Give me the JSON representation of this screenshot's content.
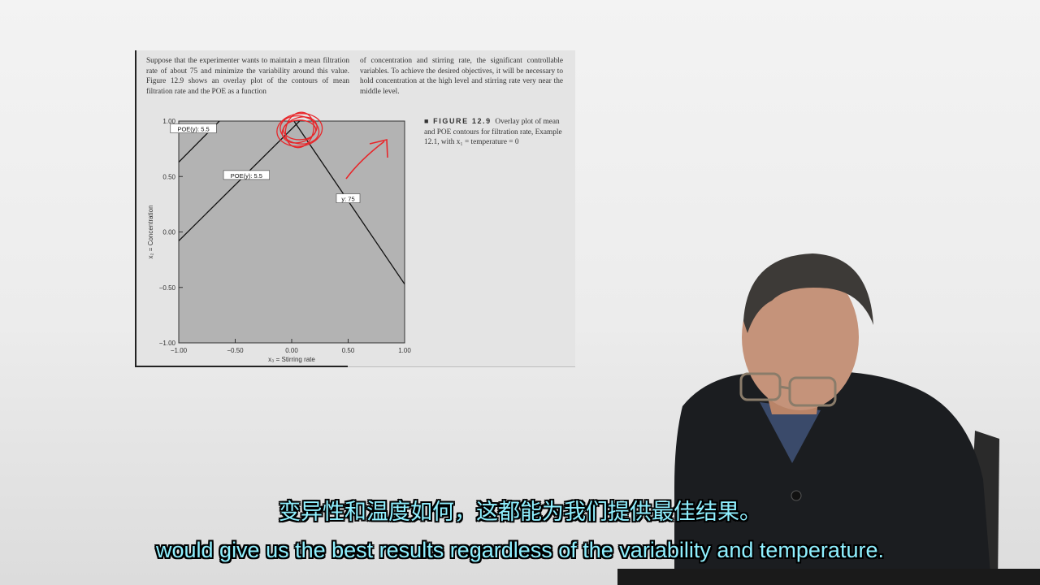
{
  "slide": {
    "paragraph_left": "Suppose that the experimenter wants to maintain a mean filtration rate of about 75 and minimize the variability around this value. Figure 12.9 shows an overlay plot of the contours of mean filtration rate and the POE as a function",
    "paragraph_right": "of concentration and stirring rate, the significant controllable variables. To achieve the desired objectives, it will be necessary to hold concentration at the high level and stirring rate very near the middle level.",
    "figure_label": "FIGURE 12.9",
    "figure_caption": "Overlay plot of mean and POE contours for filtration rate, Example 12.1, with x₁ = temperature = 0"
  },
  "chart_data": {
    "type": "line",
    "xlabel": "x₃ = Stirring rate",
    "ylabel": "x₂ = Concentration",
    "xlim": [
      -1.0,
      1.0
    ],
    "ylim": [
      -1.0,
      1.0
    ],
    "x_ticks": [
      "−1.00",
      "−0.50",
      "0.00",
      "0.50",
      "1.00"
    ],
    "y_ticks": [
      "1.00",
      "0.50",
      "0.00",
      "−0.50",
      "−1.00"
    ],
    "x_tick_values": [
      -1.0,
      -0.5,
      0.0,
      0.5,
      1.0
    ],
    "y_tick_values": [
      1.0,
      0.5,
      0.0,
      -0.5,
      -1.0
    ],
    "background_color": "#b3b3b3",
    "annotation_color": "#e8262a",
    "series": [
      {
        "name": "POE(y): 5.5",
        "x": [
          -1.0,
          -0.64
        ],
        "y": [
          0.63,
          1.0
        ]
      },
      {
        "name": "POE(y): 5.5",
        "x": [
          -1.0,
          0.07
        ],
        "y": [
          -0.08,
          1.0
        ]
      },
      {
        "name": "y: 75",
        "x": [
          0.02,
          1.0
        ],
        "y": [
          1.0,
          -0.47
        ]
      }
    ],
    "contour_labels": [
      {
        "text": "POE(y): 5.5",
        "x": -0.87,
        "y": 0.93
      },
      {
        "text": "POE(y): 5.5",
        "x": -0.4,
        "y": 0.51
      },
      {
        "text": "y: 75",
        "x": 0.5,
        "y": 0.3
      }
    ]
  },
  "subtitles": {
    "chinese": "变异性和温度如何，这都能为我们提供最佳结果。",
    "english": "would give us the best results regardless of the variability and temperature."
  }
}
